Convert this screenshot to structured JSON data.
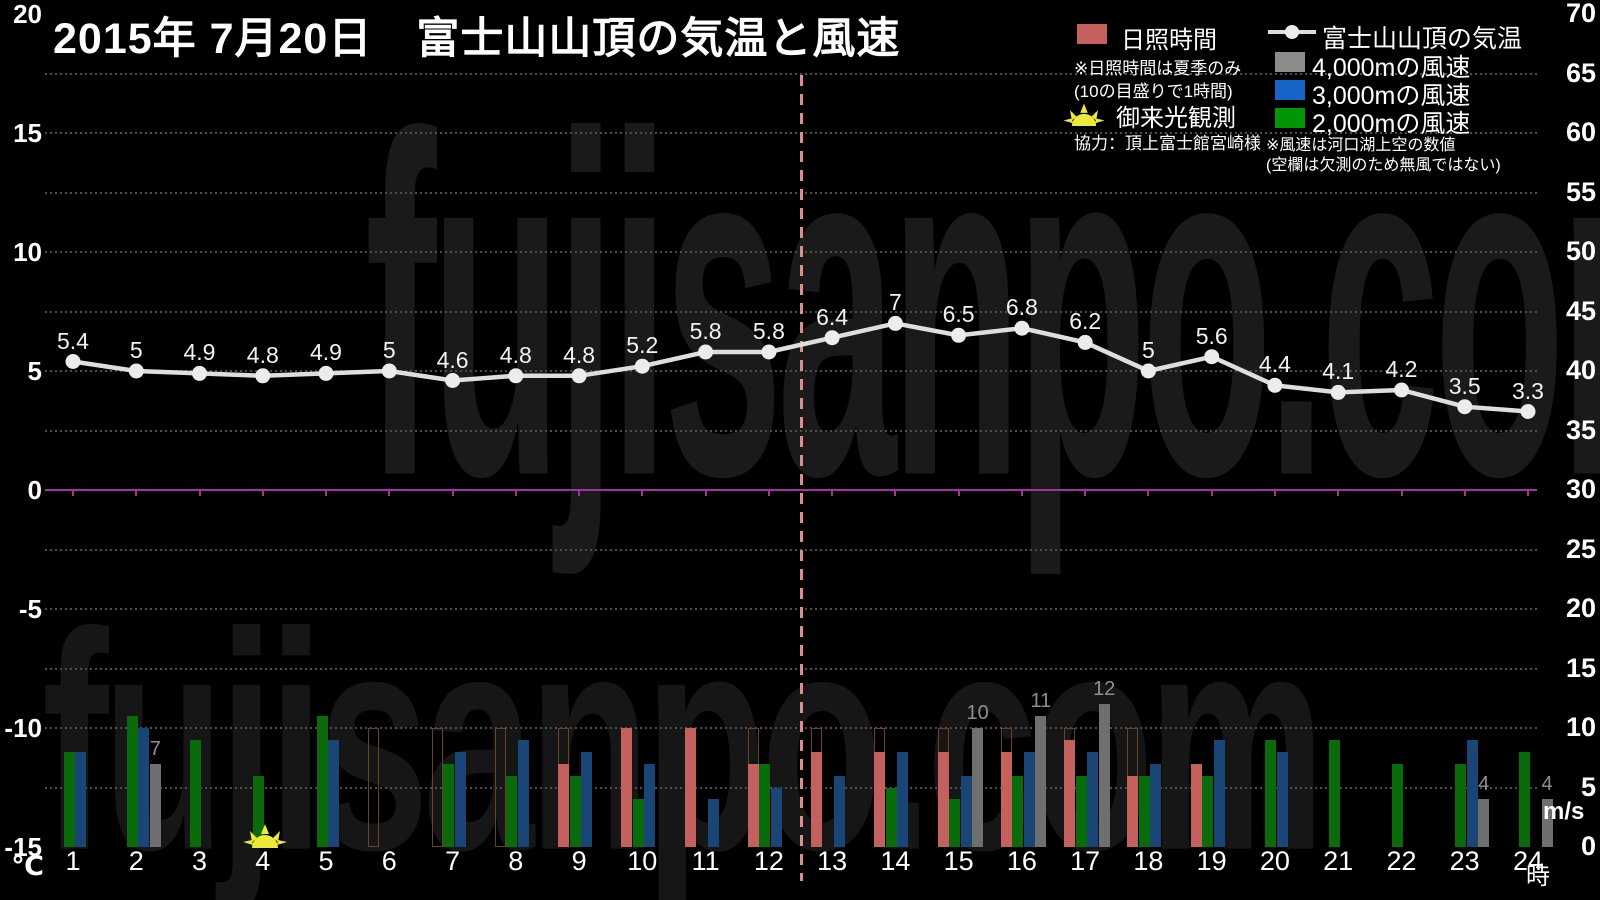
{
  "title": "2015年 7月20日　富士山山頂の気温と風速",
  "watermark": "fujisanpo.com",
  "legend": {
    "sunshine_label": "日照時間",
    "sunshine_note1": "※日照時間は夏季のみ",
    "sunshine_note2": "(10の目盛りで1時間)",
    "goraiko_label": "御来光観測",
    "credit": "協力：頂上富士館宮崎様",
    "temp_label": "富士山山頂の気温",
    "wind4000_label": "4,000mの風速",
    "wind3000_label": "3,000mの風速",
    "wind2000_label": "2,000mの風速",
    "wind_note1": "※風速は河口湖上空の数値",
    "wind_note2": "(空欄は欠測のため無風ではない)"
  },
  "axes": {
    "left_unit": "℃",
    "left_ticks": [
      20,
      15,
      10,
      5,
      0,
      -5,
      -10,
      -15
    ],
    "right_unit": "m/s",
    "right_ticks": [
      70,
      65,
      60,
      55,
      50,
      45,
      40,
      35,
      30,
      25,
      20,
      15,
      10,
      5,
      0
    ],
    "x_unit": "時",
    "hours": [
      1,
      2,
      3,
      4,
      5,
      6,
      7,
      8,
      9,
      10,
      11,
      12,
      13,
      14,
      15,
      16,
      17,
      18,
      19,
      20,
      21,
      22,
      23,
      24
    ]
  },
  "colors": {
    "sunshine": "#C4615F",
    "wind2000": "#0A6B0A",
    "wind3000": "#1A4577",
    "wind4000": "#6F6F6F",
    "legend_wind2000": "#009606",
    "legend_wind3000": "#1565C8",
    "legend_wind4000": "#8C8C8C",
    "temp_line": "#DEDEDE",
    "marker": "#ECECEC",
    "outline_box": "#6B4226",
    "zero_line": "#A033A0",
    "divider": "#DE8C8C",
    "sun": "#EDE93B",
    "bar_label": "#8F8F8F"
  },
  "chart_data": [
    {
      "type": "line",
      "name": "富士山山頂の気温",
      "unit": "℃",
      "axis": "left",
      "ylim": [
        -15,
        20
      ],
      "x": [
        1,
        2,
        3,
        4,
        5,
        6,
        7,
        8,
        9,
        10,
        11,
        12,
        13,
        14,
        15,
        16,
        17,
        18,
        19,
        20,
        21,
        22,
        23,
        24
      ],
      "values": [
        5.4,
        5,
        4.9,
        4.8,
        4.9,
        5,
        4.6,
        4.8,
        4.8,
        5.2,
        5.8,
        5.8,
        6.4,
        7,
        6.5,
        6.8,
        6.2,
        5,
        5.6,
        4.4,
        4.1,
        4.2,
        3.5,
        3.3
      ]
    },
    {
      "type": "bar",
      "unit": "m/s",
      "axis": "right",
      "ylim": [
        0,
        70
      ],
      "categories": [
        1,
        2,
        3,
        4,
        5,
        6,
        7,
        8,
        9,
        10,
        11,
        12,
        13,
        14,
        15,
        16,
        17,
        18,
        19,
        20,
        21,
        22,
        23,
        24
      ],
      "series": [
        {
          "name": "日照時間",
          "scale_note": "10の目盛りで1時間",
          "values": [
            null,
            null,
            null,
            null,
            null,
            0,
            0,
            0,
            7,
            10,
            10,
            7,
            8,
            8,
            8,
            8,
            9,
            6,
            7,
            null,
            null,
            null,
            null,
            null
          ]
        },
        {
          "name": "2,000mの風速",
          "values": [
            8,
            11,
            9,
            6,
            11,
            null,
            7,
            6,
            6,
            4,
            null,
            7,
            null,
            5,
            4,
            6,
            6,
            6,
            6,
            9,
            9,
            7,
            7,
            8
          ]
        },
        {
          "name": "3,000mの風速",
          "values": [
            8,
            10,
            null,
            null,
            9,
            null,
            8,
            9,
            8,
            7,
            4,
            5,
            6,
            8,
            6,
            8,
            8,
            7,
            9,
            8,
            null,
            null,
            9,
            null
          ]
        },
        {
          "name": "4,000mの風速",
          "labeled": true,
          "values": [
            null,
            7,
            null,
            null,
            null,
            null,
            null,
            null,
            null,
            null,
            null,
            null,
            null,
            null,
            10,
            11,
            12,
            null,
            null,
            null,
            null,
            null,
            4,
            4
          ]
        }
      ],
      "sunshine_outline_hours": [
        6,
        7,
        8,
        9,
        10,
        11,
        12,
        13,
        14,
        15,
        16,
        17,
        18
      ],
      "sunrise_marker_hour": 4,
      "divider_between_hours": [
        12,
        13
      ]
    }
  ]
}
